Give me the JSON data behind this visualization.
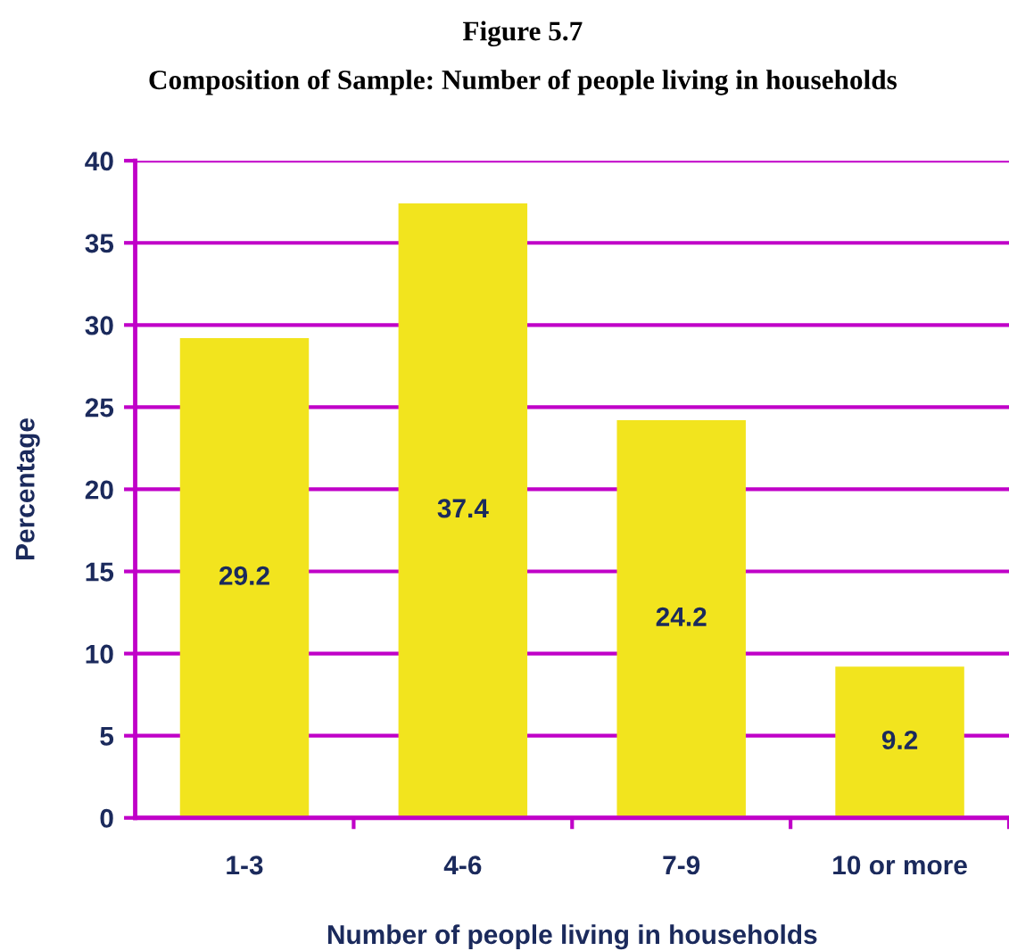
{
  "chart_data": {
    "type": "bar",
    "title": "Figure 5.7",
    "subtitle": "Composition of Sample: Number of people living in households",
    "xlabel": "Number of people living in households",
    "ylabel": "Percentage",
    "categories": [
      "1-3",
      "4-6",
      "7-9",
      "10 or more"
    ],
    "values": [
      29.2,
      37.4,
      24.2,
      9.2
    ],
    "color": "#f2e41e",
    "ylim": [
      0,
      40
    ],
    "yticks": [
      0,
      5,
      10,
      15,
      20,
      25,
      30,
      35,
      40
    ],
    "grid": "y",
    "data_labels": true
  }
}
